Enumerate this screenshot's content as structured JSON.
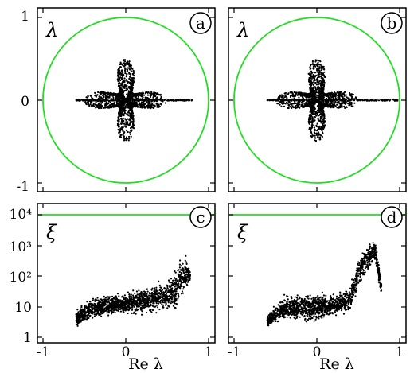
{
  "figure": {
    "xlabel": "Re λ",
    "colors": {
      "unit_circle": "#22dd22",
      "points": "#000000",
      "frame": "#000000"
    }
  },
  "chart_data": [
    {
      "type": "scatter",
      "panel": "a",
      "label": "λ",
      "xlim": [
        -1.2,
        1.2
      ],
      "ylim": [
        -1.1,
        1.1
      ],
      "yticks": [
        "1",
        "0",
        "-1"
      ],
      "overlay": {
        "shape": "unit circle",
        "radius": 1,
        "color": "#22dd22"
      },
      "point_cloud": {
        "shape": "four-pointed star centred at origin",
        "real_axis_tail": [
          -0.6,
          0.8
        ],
        "imag_extent": [
          -0.5,
          0.5
        ]
      }
    },
    {
      "type": "scatter",
      "panel": "b",
      "label": "λ",
      "xlim": [
        -1.2,
        1.2
      ],
      "ylim": [
        -1.1,
        1.1
      ],
      "overlay": {
        "shape": "unit circle",
        "radius": 1,
        "color": "#22dd22"
      },
      "point_cloud": {
        "shape": "four-pointed star centred at origin",
        "real_axis_tail": [
          -0.6,
          0.98
        ],
        "imag_extent": [
          -0.5,
          0.5
        ]
      }
    },
    {
      "type": "scatter",
      "panel": "c",
      "label": "ξ",
      "yscale": "log",
      "xlim": [
        -1.1,
        1.1
      ],
      "ylim": [
        1,
        20000
      ],
      "yticks": [
        "10⁴",
        "10³",
        "10²",
        "10",
        "1"
      ],
      "xticks": [
        "-1",
        "0",
        "1"
      ],
      "hline": {
        "y": 7500,
        "color": "#22dd22"
      },
      "profile": {
        "x": [
          -0.6,
          -0.4,
          -0.2,
          0,
          0.2,
          0.4,
          0.55,
          0.6,
          0.72,
          0.78
        ],
        "y_low": [
          2,
          3,
          4,
          5,
          5,
          6,
          6,
          5,
          25,
          60
        ],
        "y_high": [
          8,
          25,
          30,
          35,
          45,
          80,
          110,
          250,
          700,
          150
        ]
      }
    },
    {
      "type": "scatter",
      "panel": "d",
      "label": "ξ",
      "yscale": "log",
      "xlim": [
        -1.1,
        1.1
      ],
      "ylim": [
        1,
        20000
      ],
      "xticks": [
        "-1",
        "0",
        "1"
      ],
      "hline": {
        "y": 7500,
        "color": "#22dd22"
      },
      "profile": {
        "x": [
          -0.6,
          -0.4,
          -0.2,
          0,
          0.2,
          0.4,
          0.5,
          0.6,
          0.7,
          0.78
        ],
        "y_low": [
          2,
          3,
          3,
          3,
          4,
          5,
          30,
          100,
          250,
          20
        ],
        "y_high": [
          6,
          25,
          30,
          30,
          30,
          50,
          500,
          1500,
          2000,
          80
        ]
      }
    }
  ]
}
